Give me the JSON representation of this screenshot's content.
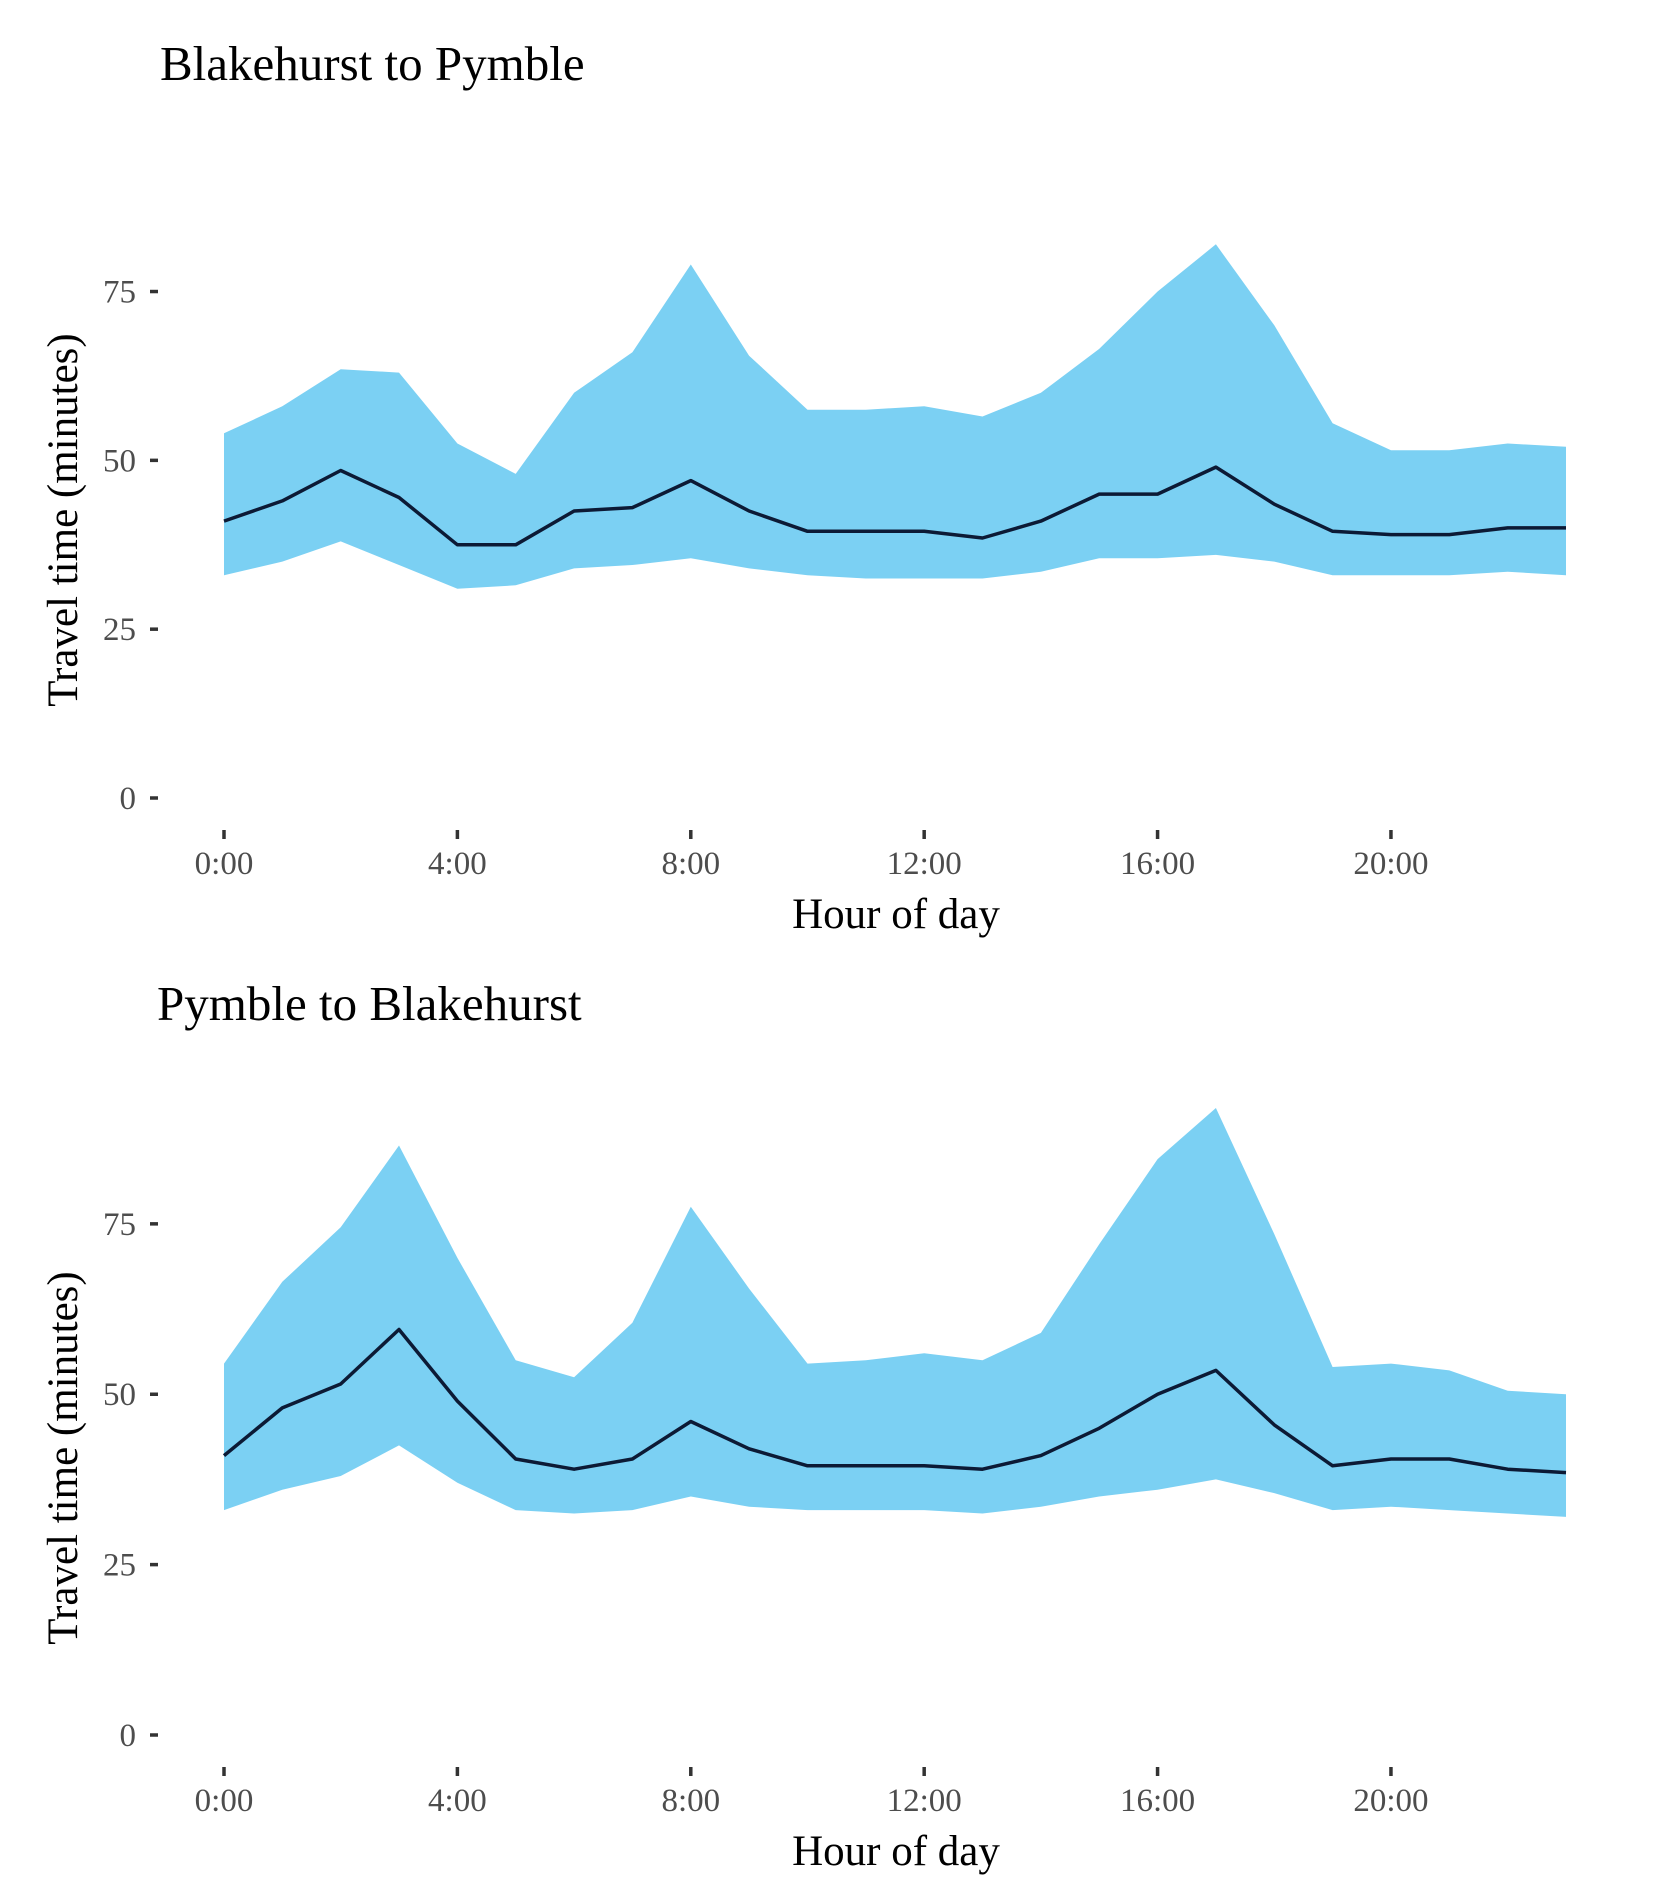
{
  "colors": {
    "band": "#7bd0f3",
    "line": "#0c1a35",
    "tick_text": "#4d4d4d",
    "background": "#ffffff"
  },
  "chart_data": [
    {
      "type": "area",
      "title": "Blakehurst to Pymble",
      "xlabel": "Hour of day",
      "ylabel": "Travel time (minutes)",
      "xlim": [
        0,
        23
      ],
      "ylim": [
        0,
        85
      ],
      "grid": false,
      "x_ticks": [
        {
          "value": 0,
          "label": "0:00"
        },
        {
          "value": 4,
          "label": "4:00"
        },
        {
          "value": 8,
          "label": "8:00"
        },
        {
          "value": 12,
          "label": "12:00"
        },
        {
          "value": 16,
          "label": "16:00"
        },
        {
          "value": 20,
          "label": "20:00"
        }
      ],
      "y_ticks": [
        {
          "value": 0,
          "label": "0"
        },
        {
          "value": 25,
          "label": "25"
        },
        {
          "value": 50,
          "label": "50"
        },
        {
          "value": 75,
          "label": "75"
        }
      ],
      "x": [
        0,
        1,
        2,
        3,
        4,
        5,
        6,
        7,
        8,
        9,
        10,
        11,
        12,
        13,
        14,
        15,
        16,
        17,
        18,
        19,
        20,
        21,
        22,
        23
      ],
      "upper": [
        54,
        58,
        63.5,
        63,
        52.5,
        48,
        60,
        66,
        79,
        65.5,
        57.5,
        57.5,
        58,
        56.5,
        60,
        66.5,
        75,
        82,
        70,
        55.5,
        51.5,
        51.5,
        52.5,
        52
      ],
      "median": [
        41,
        44,
        48.5,
        44.5,
        37.5,
        37.5,
        42.5,
        43,
        47,
        42.5,
        39.5,
        39.5,
        39.5,
        38.5,
        41,
        45,
        45,
        49,
        43.5,
        39.5,
        39,
        39,
        40,
        40
      ],
      "lower": [
        33,
        35,
        38,
        34.5,
        31,
        31.5,
        34,
        34.5,
        35.5,
        34,
        33,
        32.5,
        32.5,
        32.5,
        33.5,
        35.5,
        35.5,
        36,
        35,
        33,
        33,
        33,
        33.5,
        33
      ]
    },
    {
      "type": "area",
      "title": "Pymble to Blakehurst",
      "xlabel": "Hour of day",
      "ylabel": "Travel time (minutes)",
      "xlim": [
        0,
        23
      ],
      "ylim": [
        0,
        92
      ],
      "grid": false,
      "x_ticks": [
        {
          "value": 0,
          "label": "0:00"
        },
        {
          "value": 4,
          "label": "4:00"
        },
        {
          "value": 8,
          "label": "8:00"
        },
        {
          "value": 12,
          "label": "12:00"
        },
        {
          "value": 16,
          "label": "16:00"
        },
        {
          "value": 20,
          "label": "20:00"
        }
      ],
      "y_ticks": [
        {
          "value": 0,
          "label": "0"
        },
        {
          "value": 25,
          "label": "25"
        },
        {
          "value": 50,
          "label": "50"
        },
        {
          "value": 75,
          "label": "75"
        }
      ],
      "x": [
        0,
        1,
        2,
        3,
        4,
        5,
        6,
        7,
        8,
        9,
        10,
        11,
        12,
        13,
        14,
        15,
        16,
        17,
        18,
        19,
        20,
        21,
        22,
        23
      ],
      "upper": [
        54.5,
        66.5,
        74.5,
        86.5,
        70,
        55,
        52.5,
        60.5,
        77.5,
        65.5,
        54.5,
        55,
        56,
        55,
        59,
        72,
        84.5,
        92,
        73.5,
        54,
        54.5,
        53.5,
        50.5,
        50
      ],
      "median": [
        41,
        48,
        51.5,
        59.5,
        49,
        40.5,
        39,
        40.5,
        46,
        42,
        39.5,
        39.5,
        39.5,
        39,
        41,
        45,
        50,
        53.5,
        45.5,
        39.5,
        40.5,
        40.5,
        39,
        38.5
      ],
      "lower": [
        33,
        36,
        38,
        42.5,
        37,
        33,
        32.5,
        33,
        35,
        33.5,
        33,
        33,
        33,
        32.5,
        33.5,
        35,
        36,
        37.5,
        35.5,
        33,
        33.5,
        33,
        32.5,
        32
      ]
    }
  ]
}
